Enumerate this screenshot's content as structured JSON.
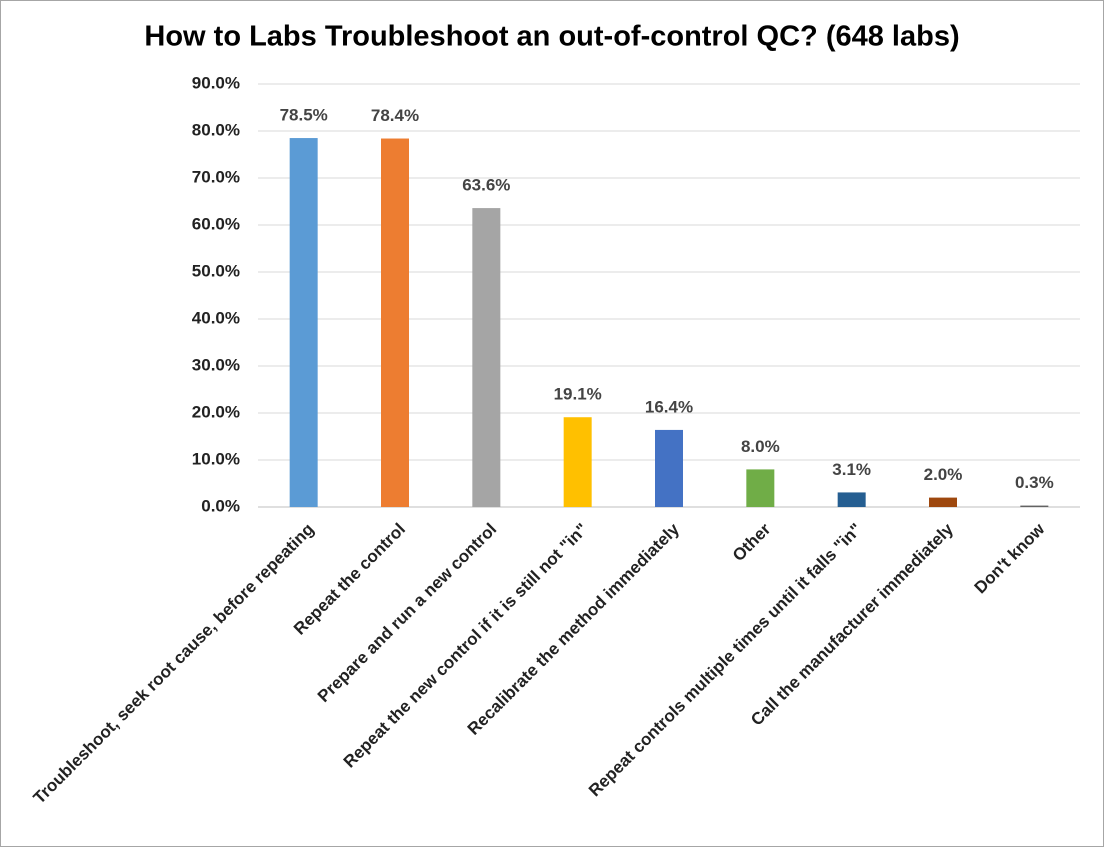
{
  "chart_data": {
    "type": "bar",
    "title": "How to Labs Troubleshoot an out-of-control QC? (648 labs)",
    "categories": [
      "Troubleshoot, seek root cause, before repeating",
      "Repeat the control",
      "Prepare and run a new control",
      "Repeat the new control if it is still not \"in\"",
      "Recalibrate the method immediately",
      "Other",
      "Repeat controls multiple times until it falls \"in\"",
      "Call the manufacturer immediately",
      "Don't know"
    ],
    "values": [
      78.5,
      78.4,
      63.6,
      19.1,
      16.4,
      8.0,
      3.1,
      2.0,
      0.3
    ],
    "value_labels": [
      "78.5%",
      "78.4%",
      "63.6%",
      "19.1%",
      "16.4%",
      "8.0%",
      "3.1%",
      "2.0%",
      "0.3%"
    ],
    "colors": [
      "#5b9bd5",
      "#ed7d31",
      "#a5a5a5",
      "#ffc000",
      "#4472c4",
      "#70ad47",
      "#255e91",
      "#9e480e",
      "#636363"
    ],
    "ylim": [
      0,
      90
    ],
    "yticks": [
      {
        "value": 0,
        "label": "0.0%"
      },
      {
        "value": 10,
        "label": "10.0%"
      },
      {
        "value": 20,
        "label": "20.0%"
      },
      {
        "value": 30,
        "label": "30.0%"
      },
      {
        "value": 40,
        "label": "40.0%"
      },
      {
        "value": 50,
        "label": "50.0%"
      },
      {
        "value": 60,
        "label": "60.0%"
      },
      {
        "value": 70,
        "label": "70.0%"
      },
      {
        "value": 80,
        "label": "80.0%"
      },
      {
        "value": 90,
        "label": "90.0%"
      }
    ],
    "grid": true
  }
}
